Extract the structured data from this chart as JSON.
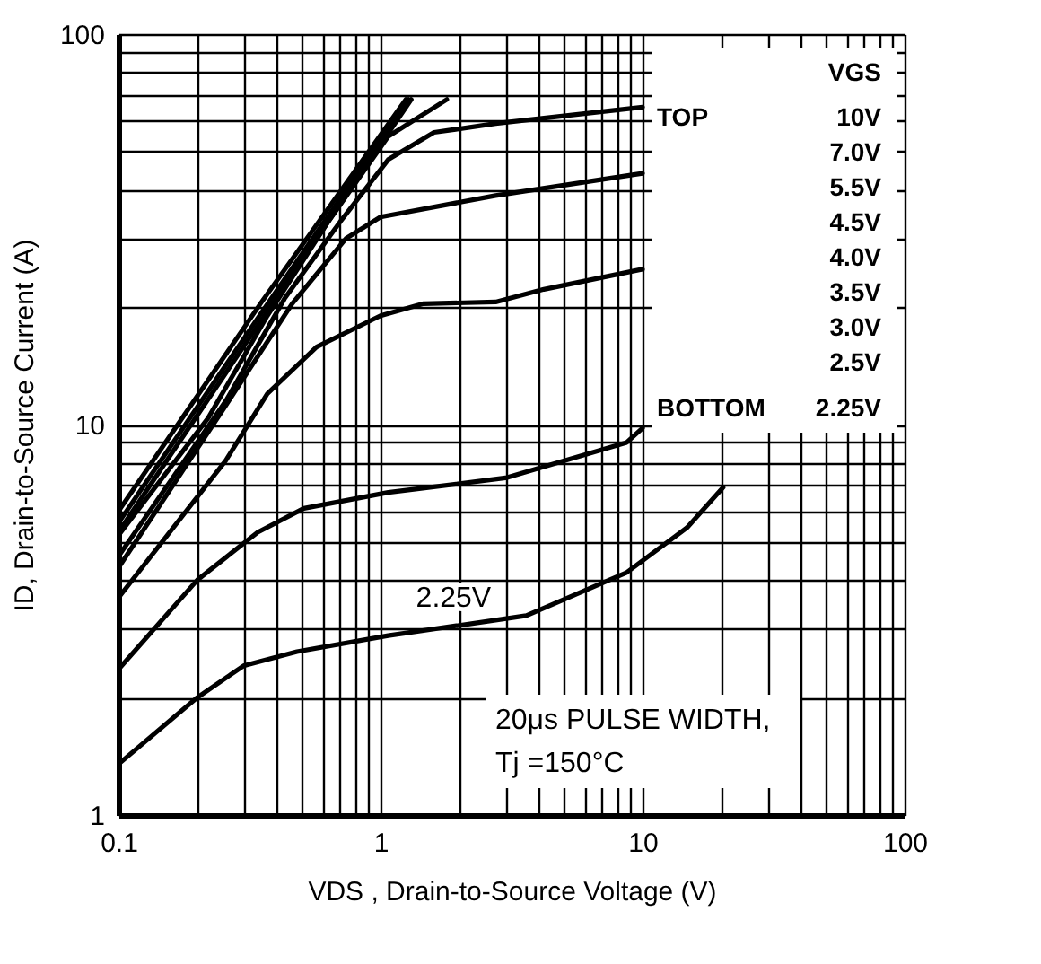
{
  "chart_data": {
    "type": "line",
    "xlabel": "VDS , Drain-to-Source Voltage (V)",
    "ylabel": "ID, Drain-to-Source Current (A)",
    "log": "xy",
    "grid": true,
    "line_style": "solid",
    "marker": "none",
    "xlim": [
      0.1,
      100
    ],
    "ylim": [
      1,
      100
    ],
    "xticks": [
      0.1,
      {
        "value": 0.2,
        "label": null
      },
      {
        "value": 0.3,
        "label": null
      },
      {
        "value": 0.4,
        "label": null
      },
      {
        "value": 0.5,
        "label": null
      },
      {
        "value": 0.6,
        "label": null
      },
      {
        "value": 0.7,
        "label": null
      },
      {
        "value": 0.8,
        "label": null
      },
      {
        "value": 0.9,
        "label": null
      },
      1,
      {
        "value": 2,
        "label": null
      },
      {
        "value": 3,
        "label": null
      },
      {
        "value": 4,
        "label": null
      },
      {
        "value": 5,
        "label": null
      },
      {
        "value": 6,
        "label": null
      },
      {
        "value": 7,
        "label": null
      },
      {
        "value": 8,
        "label": null
      },
      {
        "value": 9,
        "label": null
      },
      10,
      {
        "value": 20,
        "label": null
      },
      {
        "value": 30,
        "label": null
      },
      {
        "value": 40,
        "label": null
      },
      {
        "value": 50,
        "label": null
      },
      {
        "value": 60,
        "label": null
      },
      {
        "value": 70,
        "label": null
      },
      {
        "value": 80,
        "label": null
      },
      {
        "value": 90,
        "label": null
      },
      100
    ],
    "yticks": [
      1,
      {
        "value": 2,
        "label": null
      },
      {
        "value": 3,
        "label": null
      },
      {
        "value": 4,
        "label": null
      },
      {
        "value": 5,
        "label": null
      },
      {
        "value": 6,
        "label": null
      },
      {
        "value": 7,
        "label": null
      },
      {
        "value": 8,
        "label": null
      },
      {
        "value": 9,
        "label": null
      },
      10,
      {
        "value": 20,
        "label": null
      },
      {
        "value": 30,
        "label": null
      },
      {
        "value": 40,
        "label": null
      },
      {
        "value": 50,
        "label": null
      },
      {
        "value": 60,
        "label": null
      },
      {
        "value": 70,
        "label": null
      },
      {
        "value": 80,
        "label": null
      },
      {
        "value": 90,
        "label": null
      },
      100
    ],
    "series": [
      {
        "color": "#000000",
        "x": [
          0.1,
          0.35,
          1.25
        ],
        "values": [
          6.0,
          20.5,
          68
        ]
      },
      {
        "color": "#000000",
        "x": [
          0.1,
          0.36,
          1.28
        ],
        "values": [
          5.6,
          19.8,
          68
        ]
      },
      {
        "color": "#000000",
        "x": [
          0.1,
          0.37,
          1.31
        ],
        "values": [
          5.3,
          19.5,
          68
        ]
      },
      {
        "color": "#000000",
        "x": [
          0.1,
          0.22,
          0.37,
          0.63,
          1.07,
          1.79
        ],
        "values": [
          5.2,
          10.4,
          19,
          33,
          54.7,
          68
        ]
      },
      {
        "color": "#000000",
        "x": [
          0.1,
          0.257,
          0.43,
          0.7,
          1.07,
          1.6,
          2.75,
          10
        ],
        "values": [
          4.6,
          11.5,
          21,
          33,
          47.7,
          56,
          59,
          65
        ]
      },
      {
        "color": "#000000",
        "x": [
          0.1,
          0.257,
          0.46,
          0.74,
          1.0,
          2.75,
          10
        ],
        "values": [
          4.3,
          11.2,
          20.4,
          30,
          34,
          38.6,
          44
        ]
      },
      {
        "color": "#000000",
        "x": [
          0.1,
          0.257,
          0.37,
          0.57,
          1.0,
          1.46,
          2.75,
          4.2,
          10
        ],
        "values": [
          3.6,
          8.1,
          12,
          15.8,
          19,
          20.4,
          20.6,
          22.2,
          25
        ]
      },
      {
        "color": "#000000",
        "x": [
          0.1,
          0.2,
          0.34,
          0.51,
          1.07,
          3.0,
          8.7,
          10
        ],
        "values": [
          2.36,
          4.0,
          5.3,
          6.1,
          6.7,
          7.3,
          9.0,
          9.8
        ]
      },
      {
        "color": "#000000",
        "x": [
          0.1,
          0.2,
          0.3,
          0.48,
          1.07,
          3.6,
          8.7,
          14.8,
          20.3
        ],
        "values": [
          1.35,
          2.0,
          2.41,
          2.62,
          2.88,
          3.24,
          4.18,
          5.45,
          6.9
        ]
      }
    ],
    "annotations": [
      "VGS",
      "TOP",
      "10V",
      "7.0V",
      "5.5V",
      "4.5V",
      "4.0V",
      "3.5V",
      "3.0V",
      "2.5V",
      "BOTTOM",
      "2.25V",
      "20μs PULSE WIDTH,\nTj =150°C",
      {
        "text": "2.25V",
        "x": 1.9,
        "y": 3
      }
    ]
  }
}
